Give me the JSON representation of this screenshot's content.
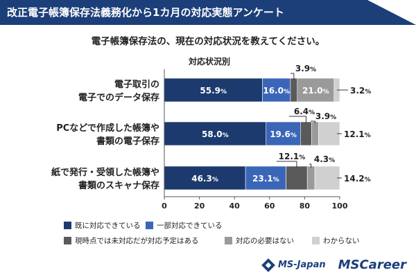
{
  "banner": {
    "title": "改正電子帳簿保存法義務化から1カ月の対応実態アンケート"
  },
  "subtitle": "電子帳簿保存法の、現在の対応状況を教えてください。",
  "logos": {
    "company": "MS-Japan",
    "service": "MSCareer"
  },
  "chart_data": {
    "type": "bar",
    "orientation": "horizontal",
    "stacked": true,
    "title": "対応状況別",
    "categories": [
      [
        "電子取引の",
        "電子でのデータ保存"
      ],
      [
        "PCなどで作成した帳簿や",
        "書類の電子保存"
      ],
      [
        "紙で発行・受領した帳簿や",
        "書類のスキャナ保存"
      ]
    ],
    "series": [
      {
        "name": "既に対応できている",
        "color": "#1c3a6e",
        "values": [
          55.9,
          58.0,
          46.3
        ],
        "labels": [
          "55.9%",
          "58.0%",
          "46.3%"
        ]
      },
      {
        "name": "一部対応できている",
        "color": "#3b66b8",
        "values": [
          16.0,
          19.6,
          23.1
        ],
        "labels": [
          "16.0%",
          "19.6%",
          "23.1%"
        ]
      },
      {
        "name": "現時点では未対応だが対応予定はある",
        "color": "#5a5a5a",
        "values": [
          3.9,
          6.4,
          12.1
        ],
        "labels": [
          "3.9%",
          "6.4%",
          "12.1%"
        ]
      },
      {
        "name": "対応の必要はない",
        "color": "#9a9a9a",
        "values": [
          21.0,
          3.9,
          4.3
        ],
        "labels": [
          "21.0%",
          "3.9%",
          "4.3%"
        ]
      },
      {
        "name": "わからない",
        "color": "#d0d0d0",
        "values": [
          3.2,
          12.1,
          14.2
        ],
        "labels": [
          "3.2%",
          "12.1%",
          "14.2%"
        ]
      }
    ],
    "xlim": [
      0,
      100
    ],
    "xticks": [
      0,
      20,
      40,
      60,
      80,
      100
    ]
  }
}
